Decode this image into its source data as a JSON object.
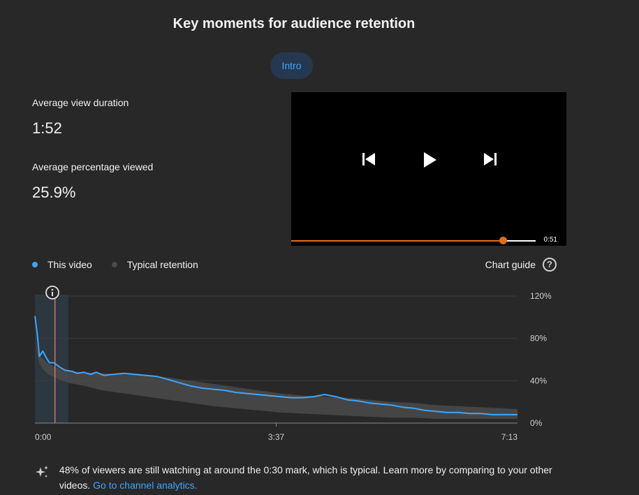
{
  "header": {
    "title": "Key moments for audience retention"
  },
  "tabs": [
    {
      "label": "Intro",
      "selected": true
    }
  ],
  "metrics": {
    "avg_view_duration": {
      "label": "Average view duration",
      "value": "1:52"
    },
    "avg_percentage_viewed": {
      "label": "Average percentage viewed",
      "value": "25.9%"
    }
  },
  "player": {
    "current_time": "0:51",
    "progress_fraction": 0.865,
    "accent_color": "#e36d1a",
    "icons": [
      "skip-previous-icon",
      "play-icon",
      "skip-next-icon"
    ]
  },
  "legend": [
    {
      "label": "This video",
      "color": "#3ea6ff"
    },
    {
      "label": "Typical retention",
      "color": "#4a4a4a"
    }
  ],
  "chart_guide": {
    "label": "Chart guide",
    "icon": "help-circle-icon"
  },
  "chart_data": {
    "type": "line",
    "x_tick_labels": [
      "0:00",
      "3:37",
      "7:13"
    ],
    "y_tick_labels": [
      "120%",
      "80%",
      "40%",
      "0%"
    ],
    "xlim_seconds": [
      0,
      433
    ],
    "ylim": [
      0,
      120
    ],
    "grid": true,
    "highlight_region_seconds": [
      0,
      30
    ],
    "marker_seconds": 18,
    "info_icon": "info-icon",
    "series": [
      {
        "name": "This video",
        "color": "#3ea6ff",
        "x": [
          0,
          2,
          4,
          7,
          10,
          13,
          17,
          22,
          27,
          33,
          38,
          44,
          50,
          55,
          62,
          70,
          80,
          90,
          100,
          110,
          120,
          130,
          140,
          150,
          160,
          170,
          180,
          190,
          200,
          210,
          220,
          230,
          240,
          250,
          260,
          270,
          280,
          290,
          300,
          310,
          320,
          330,
          340,
          350,
          360,
          370,
          380,
          390,
          400,
          410,
          420,
          433
        ],
        "y": [
          101,
          85,
          63,
          68,
          62,
          57,
          57,
          53,
          50,
          49,
          47,
          48,
          46,
          48,
          45,
          46,
          47,
          46,
          45,
          44,
          41,
          38,
          35,
          33,
          32,
          31,
          29,
          28,
          27,
          26,
          25,
          24,
          24,
          25,
          27,
          25,
          22,
          21,
          19,
          18,
          17,
          15,
          14,
          12,
          11,
          10,
          10,
          9,
          9,
          8,
          8,
          8
        ]
      },
      {
        "name": "Typical retention",
        "color": "#4a4a4a",
        "x": [
          0,
          4,
          8,
          12,
          20,
          30,
          45,
          60,
          80,
          100,
          120,
          140,
          160,
          180,
          200,
          220,
          240,
          260,
          280,
          300,
          320,
          340,
          360,
          380,
          400,
          420,
          433
        ],
        "upper": [
          76,
          64,
          60,
          56,
          52,
          49,
          48,
          47,
          46,
          45,
          43,
          40,
          37,
          34,
          31,
          28,
          26,
          25,
          24,
          22,
          20,
          19,
          17,
          16,
          15,
          14,
          13
        ],
        "lower": [
          76,
          56,
          50,
          46,
          42,
          38,
          35,
          31,
          28,
          25,
          22,
          19,
          16,
          14,
          12,
          10,
          9,
          8,
          7,
          6,
          5,
          5,
          4,
          4,
          4,
          4,
          4
        ]
      }
    ]
  },
  "insight": {
    "icon": "sparkle-icon",
    "text": "48% of viewers are still watching at around the 0:30 mark, which is typical. Learn more by comparing to your other videos.",
    "link_label": "Go to channel analytics."
  }
}
